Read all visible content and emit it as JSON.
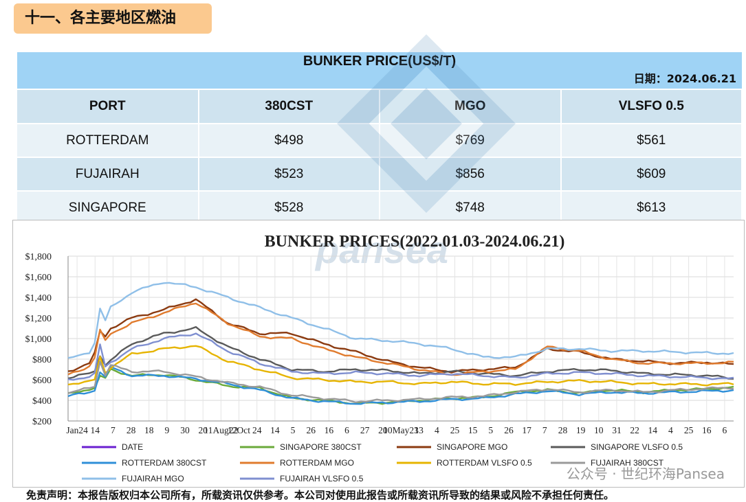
{
  "section_title": "十一、各主要地区燃油",
  "table": {
    "title": "BUNKER PRICE(US$/T)",
    "date_label": "日期：",
    "date_value": "2024.06.21",
    "headers": [
      "PORT",
      "380CST",
      "MGO",
      "VLSFO 0.5"
    ],
    "rows": [
      [
        "ROTTERDAM",
        "$498",
        "$769",
        "$561"
      ],
      [
        "FUJAIRAH",
        "$523",
        "$856",
        "$609"
      ],
      [
        "SINGAPORE",
        "$528",
        "$748",
        "$613"
      ]
    ]
  },
  "chart_data": {
    "type": "line",
    "title": "BUNKER PRICES(2022.01.03-2024.06.21)",
    "ylim": [
      200,
      1800
    ],
    "y_ticks": [
      "$200",
      "$400",
      "$600",
      "$800",
      "$1,000",
      "$1,200",
      "$1,400",
      "$1,600",
      "$1,800"
    ],
    "x_tick_labels": [
      "Jan24",
      "14",
      "7",
      "28",
      "18",
      "9",
      "30",
      "20",
      "11Aug22",
      "12Oct",
      "24",
      "14",
      "5",
      "26",
      "16",
      "6",
      "27",
      "20",
      "10May23",
      "13",
      "4",
      "25",
      "15",
      "5",
      "26",
      "17",
      "7",
      "28",
      "19",
      "10",
      "31",
      "22",
      "14",
      "4",
      "25",
      "16",
      "6"
    ],
    "grid": true,
    "legend_position": "bottom",
    "knots": [
      0,
      4,
      6,
      8,
      12,
      18,
      24,
      30,
      36,
      42,
      48,
      54,
      60,
      66,
      72,
      78,
      84,
      90,
      96,
      102,
      108,
      114,
      120,
      125
    ],
    "series": [
      {
        "name": "DATE",
        "color": "#6a1fd0",
        "values": []
      },
      {
        "name": "SINGAPORE 380CST",
        "color": "#6aaa3a",
        "values": [
          460,
          510,
          530,
          700,
          640,
          650,
          600,
          540,
          520,
          420,
          400,
          370,
          380,
          400,
          420,
          430,
          480,
          500,
          470,
          500,
          480,
          500,
          510,
          528
        ]
      },
      {
        "name": "SINGAPORE MGO",
        "color": "#8b3a10",
        "values": [
          680,
          760,
          950,
          1100,
          1200,
          1280,
          1380,
          1150,
          1050,
          1050,
          950,
          870,
          780,
          720,
          680,
          700,
          720,
          900,
          870,
          800,
          780,
          760,
          770,
          748
        ]
      },
      {
        "name": "SINGAPORE VLSFO 0.5",
        "color": "#5a5a5a",
        "values": [
          620,
          660,
          700,
          790,
          950,
          1050,
          1100,
          920,
          800,
          700,
          680,
          700,
          690,
          660,
          680,
          660,
          640,
          680,
          700,
          690,
          660,
          650,
          640,
          613
        ]
      },
      {
        "name": "ROTTERDAM 380CST",
        "color": "#2f8fd8",
        "values": [
          440,
          480,
          520,
          720,
          640,
          640,
          610,
          560,
          500,
          420,
          390,
          370,
          380,
          390,
          410,
          420,
          460,
          490,
          460,
          480,
          470,
          480,
          490,
          498
        ]
      },
      {
        "name": "ROTTERDAM MGO",
        "color": "#e07b2e",
        "values": [
          650,
          730,
          900,
          1050,
          1150,
          1250,
          1350,
          1150,
          1020,
          1000,
          900,
          820,
          760,
          700,
          650,
          680,
          700,
          920,
          880,
          800,
          760,
          760,
          760,
          769
        ]
      },
      {
        "name": "ROTTERDAM VLSFO 0.5",
        "color": "#e6b400",
        "values": [
          560,
          580,
          620,
          720,
          850,
          900,
          930,
          780,
          700,
          620,
          600,
          580,
          580,
          560,
          580,
          560,
          560,
          580,
          590,
          580,
          560,
          560,
          555,
          561
        ]
      },
      {
        "name": "FUJAIRAH 380CST",
        "color": "#9a9a9a",
        "values": [
          470,
          520,
          560,
          740,
          680,
          680,
          630,
          570,
          530,
          450,
          420,
          390,
          400,
          410,
          430,
          440,
          480,
          510,
          480,
          500,
          480,
          500,
          515,
          523
        ]
      },
      {
        "name": "FUJAIRAH MGO",
        "color": "#8fbfe8",
        "values": [
          800,
          870,
          1050,
          1300,
          1450,
          1550,
          1500,
          1400,
          1300,
          1200,
          1100,
          1000,
          980,
          950,
          900,
          820,
          820,
          900,
          900,
          880,
          880,
          870,
          860,
          856
        ]
      },
      {
        "name": "FUJAIRAH VLSFO 0.5",
        "color": "#7f8fd0",
        "values": [
          600,
          630,
          680,
          770,
          900,
          1000,
          1050,
          880,
          760,
          680,
          660,
          670,
          660,
          640,
          660,
          640,
          620,
          660,
          670,
          660,
          640,
          630,
          620,
          609
        ]
      }
    ]
  },
  "footer": {
    "disclaimer": "免责声明：本报告版权归本公司所有，所载资讯仅供参考。本公司对使用此报告或所载资讯所导致的结果或风险不承担任何责任。",
    "wechat_label": "公众号 · 世纪环海Pansea"
  },
  "watermark_text": "pansea"
}
